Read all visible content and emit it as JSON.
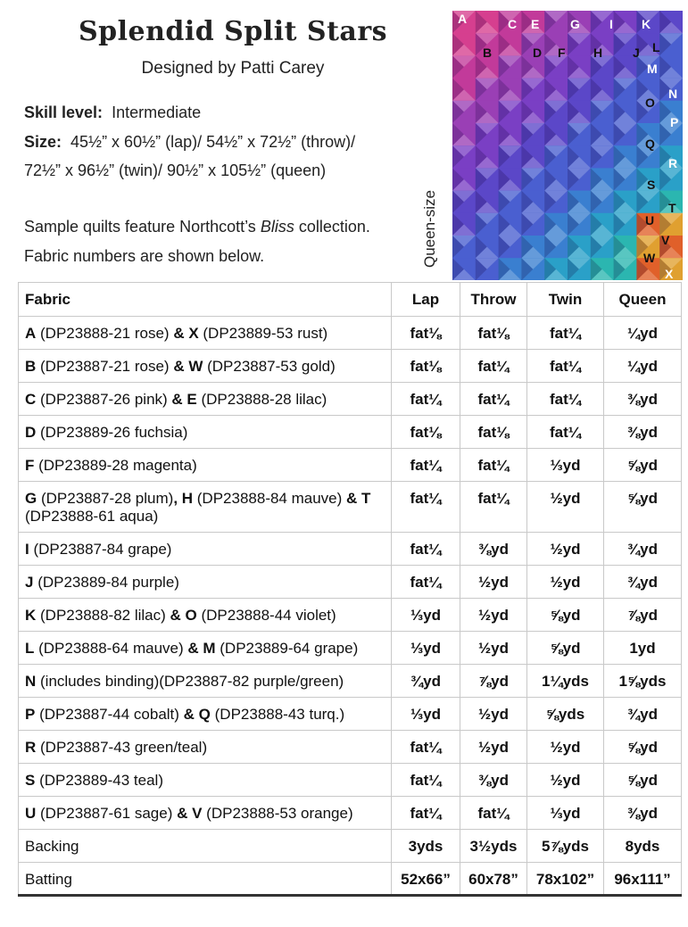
{
  "header": {
    "title": "Splendid Split Stars",
    "designer": "Designed by Patti Carey"
  },
  "info": {
    "skill_label": "Skill level:",
    "skill_value": "Intermediate",
    "size_label": "Size:",
    "size_line1": "45½” x 60½” (lap)/ 54½” x 72½” (throw)/",
    "size_line2": "72½” x 96½” (twin)/ 90½” x 105½” (queen)",
    "sample_pre": "Sample quilts feature Northcott’s",
    "sample_em": "Bliss",
    "sample_post": "collection.",
    "fabric_note": "Fabric numbers are shown below."
  },
  "quilt": {
    "label": "Queen-size",
    "letters": [
      "A",
      "B",
      "C",
      "D",
      "E",
      "F",
      "G",
      "H",
      "I",
      "J",
      "K",
      "L",
      "M",
      "N",
      "O",
      "P",
      "Q",
      "R",
      "S",
      "T",
      "U",
      "V",
      "W",
      "X"
    ]
  },
  "table": {
    "headers": [
      "Fabric",
      "Lap",
      "Throw",
      "Twin",
      "Queen"
    ],
    "rows": [
      {
        "parts": [
          {
            "b": "A",
            "t": " (DP23888-21 rose) "
          },
          {
            "b": "& X",
            "t": " (DP23889-53 rust)"
          }
        ],
        "lap": "fat⅛",
        "throw": "fat⅛",
        "twin": "fat¼",
        "queen": "¼yd"
      },
      {
        "parts": [
          {
            "b": "B",
            "t": " (DP23887-21 rose) "
          },
          {
            "b": "& W",
            "t": " (DP23887-53 gold)"
          }
        ],
        "lap": "fat⅛",
        "throw": "fat¼",
        "twin": "fat¼",
        "queen": "¼yd"
      },
      {
        "parts": [
          {
            "b": "C",
            "t": " (DP23887-26 pink) "
          },
          {
            "b": "& E",
            "t": " (DP23888-28 lilac)"
          }
        ],
        "lap": "fat¼",
        "throw": "fat¼",
        "twin": "fat¼",
        "queen": "⅜yd"
      },
      {
        "parts": [
          {
            "b": "D",
            "t": " (DP23889-26 fuchsia)"
          }
        ],
        "lap": "fat⅛",
        "throw": "fat⅛",
        "twin": "fat¼",
        "queen": "⅜yd"
      },
      {
        "parts": [
          {
            "b": "F",
            "t": " (DP23889-28 magenta)"
          }
        ],
        "lap": "fat¼",
        "throw": "fat¼",
        "twin": "⅓yd",
        "queen": "⅝yd"
      },
      {
        "parts": [
          {
            "b": "G",
            "t": " (DP23887-28 plum)"
          },
          {
            "b": ", H",
            "t": " (DP23888-84 mauve) "
          },
          {
            "b": "& T",
            "t": " (DP23888-61 aqua)"
          }
        ],
        "lap": "fat¼",
        "throw": "fat¼",
        "twin": "½yd",
        "queen": "⅝yd",
        "tall": true
      },
      {
        "parts": [
          {
            "b": "I",
            "t": " (DP23887-84 grape)"
          }
        ],
        "lap": "fat¼",
        "throw": "⅜yd",
        "twin": "½yd",
        "queen": "¾yd"
      },
      {
        "parts": [
          {
            "b": "J",
            "t": " (DP23889-84 purple)"
          }
        ],
        "lap": "fat¼",
        "throw": "½yd",
        "twin": "½yd",
        "queen": "¾yd"
      },
      {
        "parts": [
          {
            "b": "K",
            "t": " (DP23888-82 lilac) "
          },
          {
            "b": "& O",
            "t": " (DP23888-44 violet)"
          }
        ],
        "lap": "⅓yd",
        "throw": "½yd",
        "twin": "⅝yd",
        "queen": "⅞yd"
      },
      {
        "parts": [
          {
            "b": "L",
            "t": " (DP23888-64 mauve) "
          },
          {
            "b": "& M",
            "t": " (DP23889-64 grape)"
          }
        ],
        "lap": "⅓yd",
        "throw": "½yd",
        "twin": "⅝yd",
        "queen": "1yd"
      },
      {
        "parts": [
          {
            "b": "N",
            "t": " (includes binding)(DP23887-82 purple/green)"
          }
        ],
        "lap": "¾yd",
        "throw": "⅞yd",
        "twin": "1¼yds",
        "queen": "1⅝yds"
      },
      {
        "parts": [
          {
            "b": "P",
            "t": " (DP23887-44 cobalt) "
          },
          {
            "b": "& Q",
            "t": " (DP23888-43 turq.)"
          }
        ],
        "lap": "⅓yd",
        "throw": "½yd",
        "twin": "⅝yds",
        "queen": "¾yd"
      },
      {
        "parts": [
          {
            "b": "R",
            "t": " (DP23887-43 green/teal)"
          }
        ],
        "lap": "fat¼",
        "throw": "½yd",
        "twin": "½yd",
        "queen": "⅝yd"
      },
      {
        "parts": [
          {
            "b": "S",
            "t": " (DP23889-43 teal)"
          }
        ],
        "lap": "fat¼",
        "throw": "⅜yd",
        "twin": "½yd",
        "queen": "⅝yd"
      },
      {
        "parts": [
          {
            "b": "U",
            "t": " (DP23887-61 sage) "
          },
          {
            "b": "& V",
            "t": " (DP23888-53 orange)"
          }
        ],
        "lap": "fat¼",
        "throw": "fat¼",
        "twin": "⅓yd",
        "queen": "⅜yd"
      },
      {
        "parts": [
          {
            "b": "",
            "t": "Backing"
          }
        ],
        "lap": "3yds",
        "throw": "3½yds",
        "twin": "5⅞yds",
        "queen": "8yds"
      },
      {
        "parts": [
          {
            "b": "",
            "t": "Batting"
          }
        ],
        "lap": "52x66”",
        "throw": "60x78”",
        "twin": "78x102”",
        "queen": "96x111”",
        "last": true
      }
    ]
  }
}
